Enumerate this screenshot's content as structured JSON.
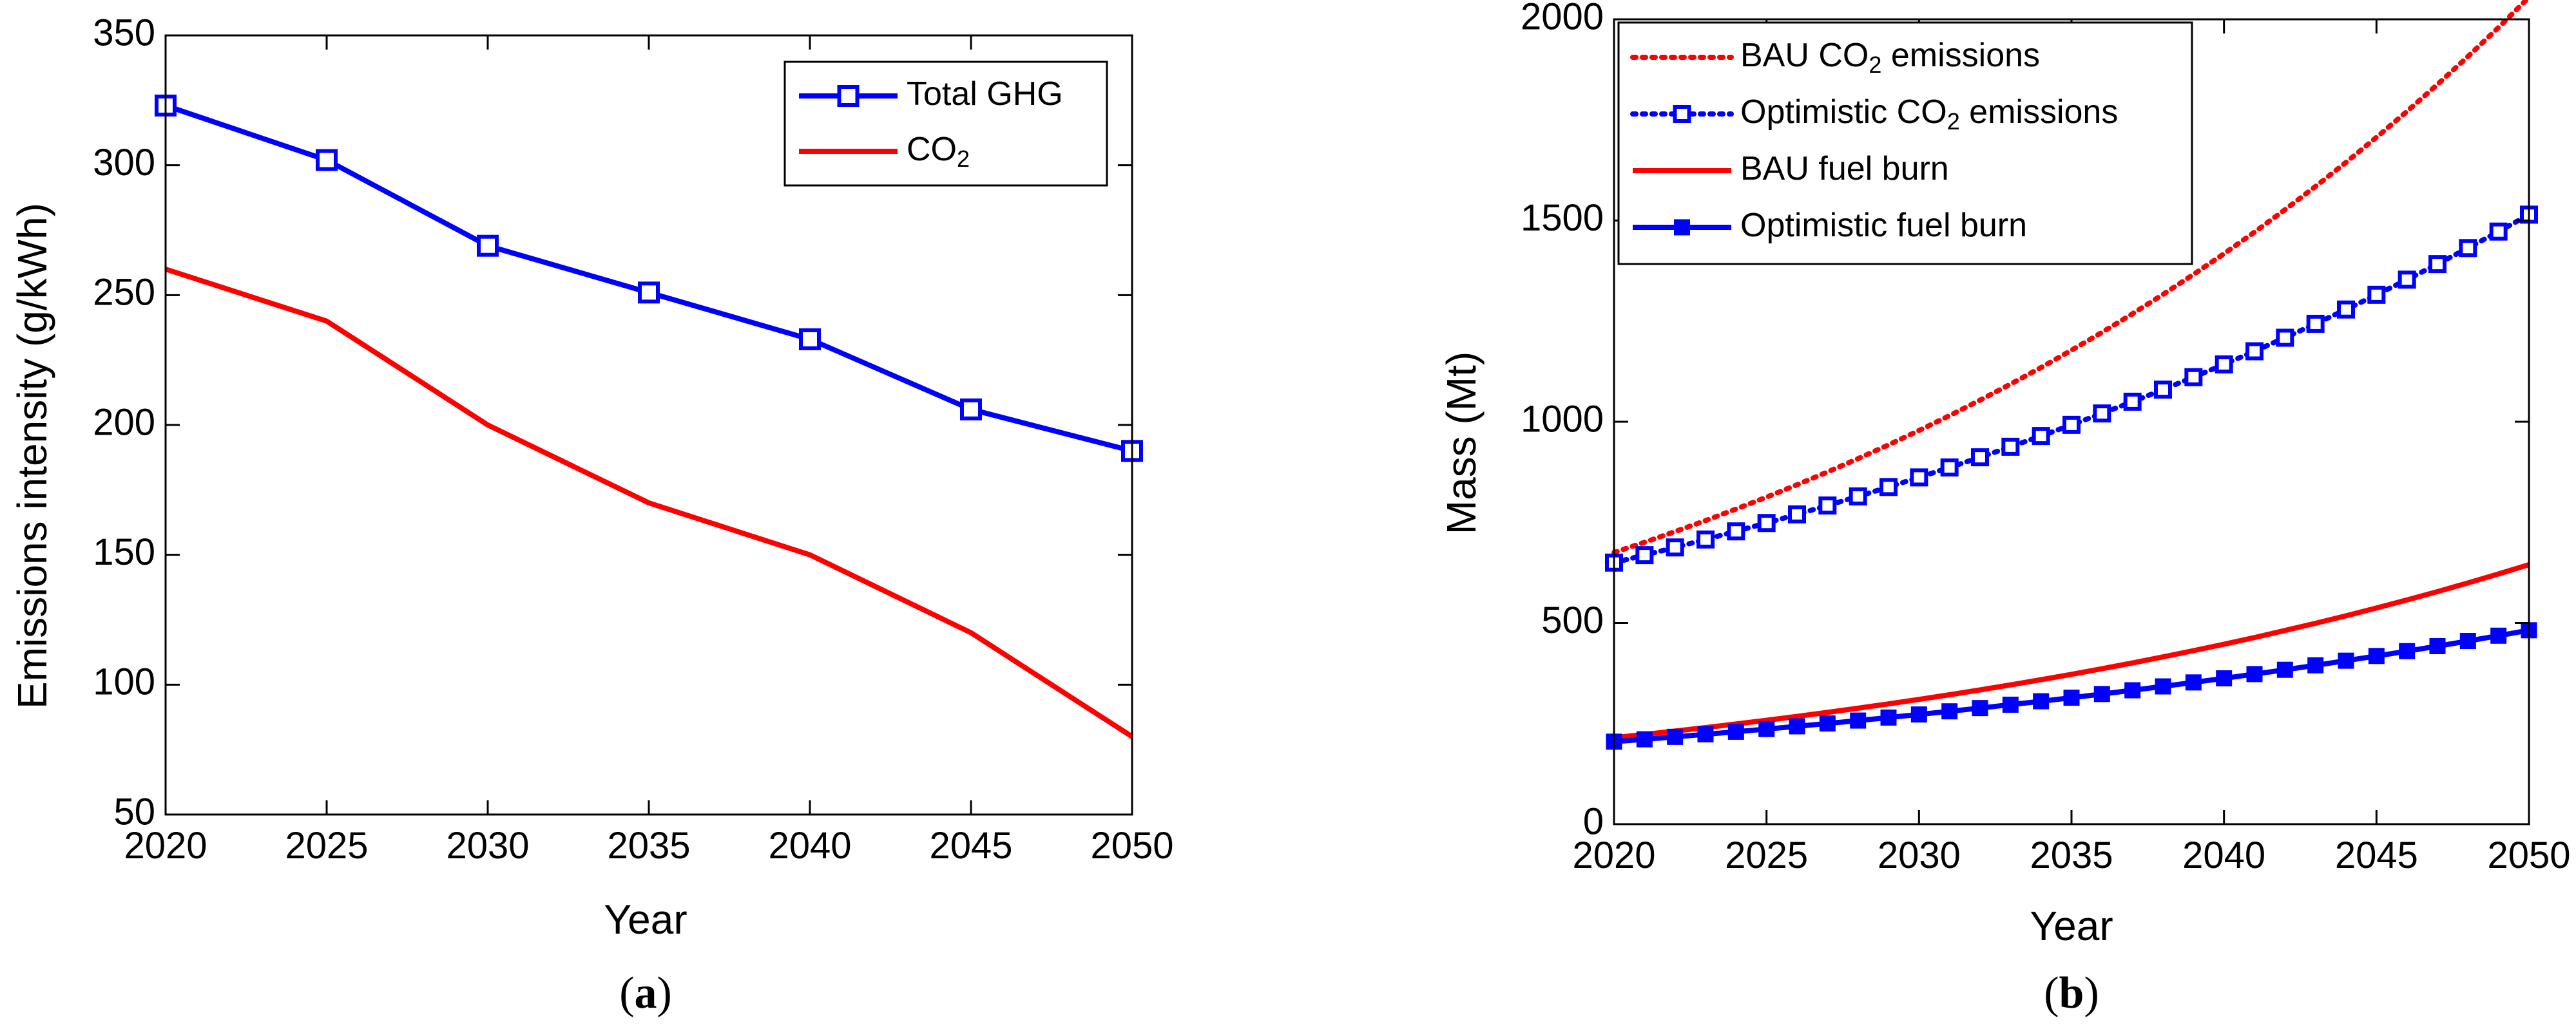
{
  "chart_data": [
    {
      "type": "line",
      "panel_label": "a",
      "title": "",
      "xlabel": "Year",
      "ylabel": "Emissions intensity (g/kWh)",
      "xlim": [
        2020,
        2050
      ],
      "ylim": [
        50,
        350
      ],
      "xticks": [
        2020,
        2025,
        2030,
        2035,
        2040,
        2045,
        2050
      ],
      "yticks": [
        50,
        100,
        150,
        200,
        250,
        300,
        350
      ],
      "legend": {
        "placement": "top-right"
      },
      "series": [
        {
          "name": "Total GHG",
          "legend_label": "Total GHG",
          "color": "#0000ff",
          "line": "solid",
          "marker": "open-square",
          "x": [
            2020,
            2025,
            2030,
            2035,
            2040,
            2045,
            2050
          ],
          "values": [
            323,
            302,
            269,
            251,
            233,
            206,
            190
          ]
        },
        {
          "name": "CO2",
          "legend_label": "CO",
          "legend_subscript": "2",
          "color": "#ff0000",
          "line": "solid",
          "marker": "none",
          "x": [
            2020,
            2025,
            2030,
            2035,
            2040,
            2045,
            2050
          ],
          "values": [
            260,
            240,
            200,
            170,
            150,
            120,
            80
          ]
        }
      ]
    },
    {
      "type": "line",
      "panel_label": "b",
      "title": "",
      "xlabel": "Year",
      "ylabel": "Mass (Mt)",
      "xlim": [
        2020,
        2050
      ],
      "ylim": [
        0,
        2000
      ],
      "xticks": [
        2020,
        2025,
        2030,
        2035,
        2040,
        2045,
        2050
      ],
      "yticks": [
        0,
        500,
        1000,
        1500,
        2000
      ],
      "legend": {
        "placement": "top-left"
      },
      "series": [
        {
          "name": "BAU CO2 emissions",
          "legend_label": "BAU CO",
          "legend_subscript": "2",
          "legend_suffix": " emissions",
          "color": "#ff0000",
          "line": "dotted",
          "marker": "none",
          "growth": {
            "start_year": 2020,
            "start_value": 675,
            "annual_rate": 0.0378,
            "end_year": 2050
          }
        },
        {
          "name": "Optimistic CO2 emissions",
          "legend_label": "Optimistic CO",
          "legend_subscript": "2",
          "legend_suffix": " emissions",
          "color": "#0000ff",
          "line": "dotted",
          "marker": "open-square",
          "growth": {
            "start_year": 2020,
            "start_value": 650,
            "annual_rate": 0.0286,
            "end_year": 2050
          }
        },
        {
          "name": "BAU fuel burn",
          "legend_label": "BAU fuel burn",
          "color": "#ff0000",
          "line": "solid",
          "marker": "none",
          "growth": {
            "start_year": 2020,
            "start_value": 215,
            "annual_rate": 0.0373,
            "end_year": 2050
          }
        },
        {
          "name": "Optimistic fuel burn",
          "legend_label": "Optimistic fuel burn",
          "color": "#0000ff",
          "line": "solid",
          "marker": "filled-square",
          "growth": {
            "start_year": 2020,
            "start_value": 205,
            "annual_rate": 0.0289,
            "end_year": 2050
          }
        }
      ]
    }
  ]
}
